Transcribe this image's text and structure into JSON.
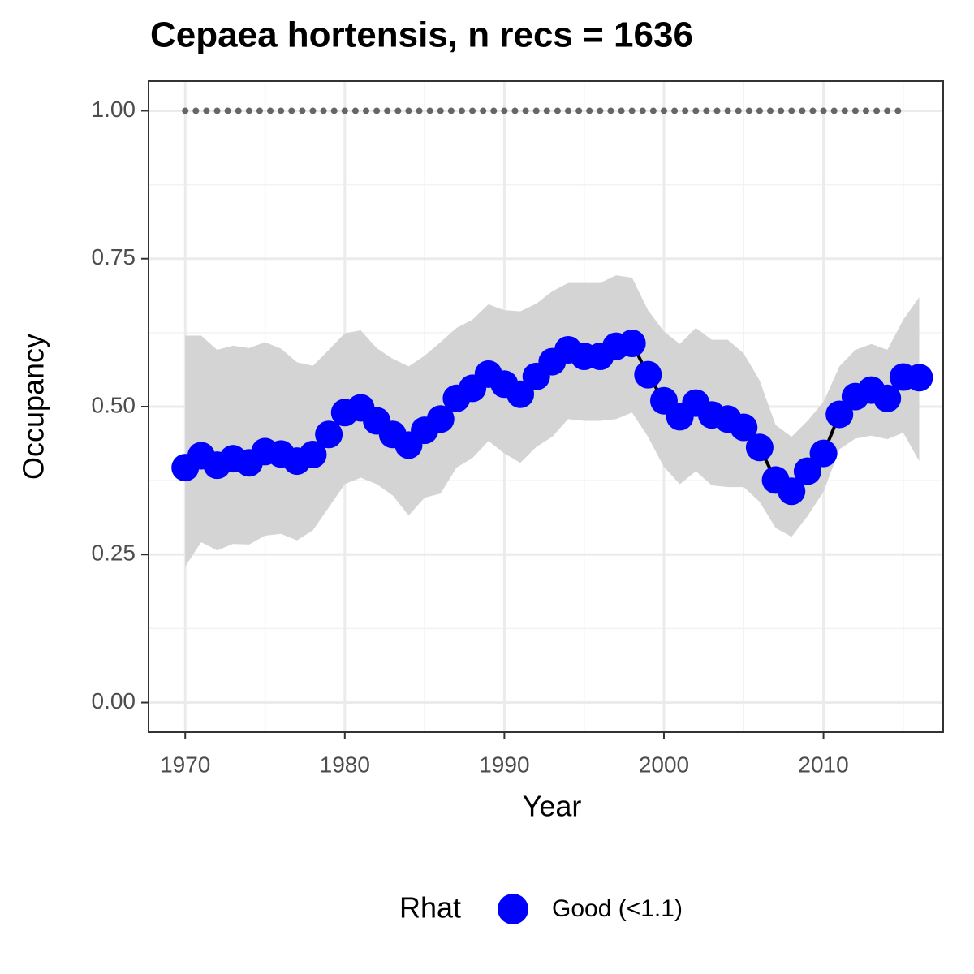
{
  "chart_data": {
    "type": "line",
    "title": "Cepaea hortensis, n recs = 1636",
    "x_label": "Year",
    "y_label": "Occupancy",
    "legend_title": "Rhat",
    "x": [
      1970,
      1971,
      1972,
      1973,
      1974,
      1975,
      1976,
      1977,
      1978,
      1979,
      1980,
      1981,
      1982,
      1983,
      1984,
      1985,
      1986,
      1987,
      1988,
      1989,
      1990,
      1991,
      1992,
      1993,
      1994,
      1995,
      1996,
      1997,
      1998,
      1999,
      2000,
      2001,
      2002,
      2003,
      2004,
      2005,
      2006,
      2007,
      2008,
      2009,
      2010,
      2011,
      2012,
      2013,
      2014,
      2015,
      2016
    ],
    "series": [
      {
        "name": "Good (<1.1)",
        "color": "#0000ff",
        "line_color": "#000000",
        "ribbon_color": "#d4d4d4",
        "values": [
          0.397,
          0.417,
          0.401,
          0.412,
          0.405,
          0.424,
          0.42,
          0.408,
          0.419,
          0.453,
          0.49,
          0.498,
          0.476,
          0.453,
          0.435,
          0.46,
          0.479,
          0.514,
          0.531,
          0.555,
          0.538,
          0.521,
          0.551,
          0.576,
          0.596,
          0.585,
          0.585,
          0.602,
          0.607,
          0.554,
          0.51,
          0.483,
          0.506,
          0.486,
          0.479,
          0.465,
          0.431,
          0.376,
          0.357,
          0.391,
          0.421,
          0.487,
          0.517,
          0.528,
          0.514,
          0.55,
          0.549
        ],
        "upper": [
          0.62,
          0.62,
          0.596,
          0.603,
          0.599,
          0.609,
          0.598,
          0.575,
          0.569,
          0.596,
          0.624,
          0.629,
          0.599,
          0.581,
          0.568,
          0.586,
          0.609,
          0.633,
          0.647,
          0.673,
          0.663,
          0.661,
          0.674,
          0.695,
          0.709,
          0.709,
          0.709,
          0.722,
          0.718,
          0.663,
          0.627,
          0.606,
          0.633,
          0.613,
          0.613,
          0.59,
          0.544,
          0.469,
          0.449,
          0.476,
          0.508,
          0.568,
          0.596,
          0.606,
          0.596,
          0.647,
          0.685
        ],
        "lower": [
          0.23,
          0.271,
          0.257,
          0.268,
          0.267,
          0.282,
          0.285,
          0.274,
          0.291,
          0.33,
          0.369,
          0.38,
          0.369,
          0.35,
          0.316,
          0.346,
          0.353,
          0.397,
          0.413,
          0.442,
          0.421,
          0.405,
          0.432,
          0.449,
          0.479,
          0.476,
          0.476,
          0.479,
          0.49,
          0.449,
          0.398,
          0.369,
          0.391,
          0.367,
          0.364,
          0.364,
          0.339,
          0.295,
          0.28,
          0.315,
          0.356,
          0.428,
          0.446,
          0.451,
          0.445,
          0.456,
          0.408
        ]
      }
    ],
    "reference_line": {
      "value": 1,
      "x": [
        1970,
        2015
      ],
      "color": "#666666"
    },
    "xlim": [
      1967.7,
      2017.5
    ],
    "ylim": [
      -0.05,
      1.05
    ],
    "xticks": [
      1970,
      1980,
      1990,
      2000,
      2010
    ],
    "yticks": [
      {
        "value": 0,
        "label": "0.00"
      },
      {
        "value": 0.25,
        "label": "0.25"
      },
      {
        "value": 0.5,
        "label": "0.50"
      },
      {
        "value": 0.75,
        "label": "0.75"
      },
      {
        "value": 1,
        "label": "1.00"
      }
    ],
    "minor_xticks": [
      1975,
      1985,
      1995,
      2005,
      2015
    ],
    "minor_yticks": [
      0.125,
      0.375,
      0.625,
      0.875
    ],
    "grid": true
  }
}
